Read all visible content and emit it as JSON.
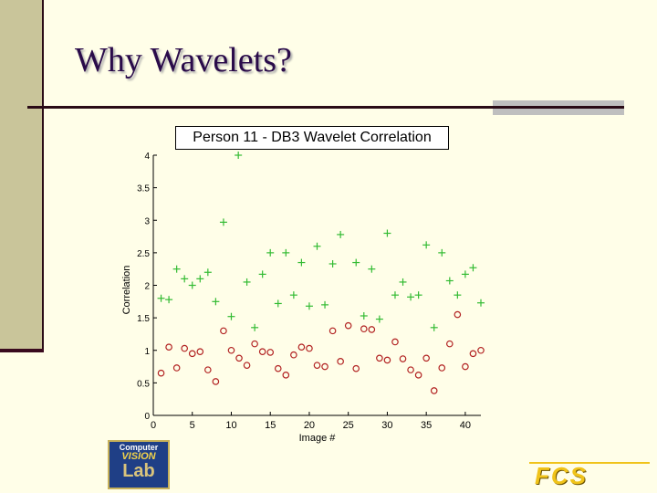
{
  "slide": {
    "title": "Why Wavelets?"
  },
  "logos": {
    "cvl": {
      "line1": "Computer",
      "line2": "VISION",
      "line3": "Lab"
    },
    "fcs": "FCS"
  },
  "chart_data": {
    "type": "scatter",
    "title": "Person 11 - DB3 Wavelet Correlation",
    "xlabel": "Image #",
    "ylabel": "Correlation",
    "xlim": [
      0,
      42
    ],
    "ylim": [
      0,
      4
    ],
    "xticks": [
      0,
      5,
      10,
      15,
      20,
      25,
      30,
      35,
      40
    ],
    "yticks": [
      0,
      0.5,
      1,
      1.5,
      2,
      2.5,
      3,
      3.5,
      4
    ],
    "yticklabels": [
      "0",
      "0.5",
      "1",
      "1.5",
      "2",
      "2.5",
      "3",
      "3.5",
      "4"
    ],
    "grid": false,
    "colors": {
      "plus": "#33bb33",
      "circle": "#b22222"
    },
    "series": [
      {
        "marker": "plus",
        "points": [
          [
            1,
            1.8
          ],
          [
            2,
            1.78
          ],
          [
            3,
            2.25
          ],
          [
            4,
            2.1
          ],
          [
            5,
            2.0
          ],
          [
            6,
            2.1
          ],
          [
            7,
            2.2
          ],
          [
            8,
            1.75
          ],
          [
            9,
            2.97
          ],
          [
            10,
            1.52
          ],
          [
            10.9,
            4.0
          ],
          [
            12,
            2.05
          ],
          [
            13,
            1.35
          ],
          [
            14,
            2.17
          ],
          [
            15,
            2.5
          ],
          [
            16,
            1.72
          ],
          [
            17,
            2.5
          ],
          [
            18,
            1.85
          ],
          [
            19,
            2.35
          ],
          [
            20,
            1.68
          ],
          [
            21,
            2.6
          ],
          [
            22,
            1.7
          ],
          [
            23,
            2.33
          ],
          [
            24,
            2.78
          ],
          [
            26,
            2.35
          ],
          [
            27,
            1.53
          ],
          [
            28,
            2.25
          ],
          [
            29,
            1.48
          ],
          [
            30,
            2.8
          ],
          [
            31,
            1.85
          ],
          [
            32,
            2.05
          ],
          [
            33,
            1.82
          ],
          [
            34,
            1.85
          ],
          [
            35,
            2.62
          ],
          [
            36,
            1.35
          ],
          [
            37,
            2.5
          ],
          [
            38,
            2.07
          ],
          [
            39,
            1.85
          ],
          [
            40,
            2.17
          ],
          [
            41,
            2.27
          ],
          [
            42,
            1.73
          ]
        ]
      },
      {
        "marker": "circle",
        "points": [
          [
            1,
            0.65
          ],
          [
            2,
            1.05
          ],
          [
            3,
            0.73
          ],
          [
            4,
            1.03
          ],
          [
            5,
            0.95
          ],
          [
            6,
            0.98
          ],
          [
            7,
            0.7
          ],
          [
            8,
            0.52
          ],
          [
            9,
            1.3
          ],
          [
            10,
            1.0
          ],
          [
            11,
            0.88
          ],
          [
            12,
            0.77
          ],
          [
            13,
            1.1
          ],
          [
            14,
            0.98
          ],
          [
            15,
            0.97
          ],
          [
            16,
            0.72
          ],
          [
            17,
            0.62
          ],
          [
            18,
            0.93
          ],
          [
            19,
            1.05
          ],
          [
            20,
            1.03
          ],
          [
            21,
            0.77
          ],
          [
            22,
            0.75
          ],
          [
            23,
            1.3
          ],
          [
            24,
            0.83
          ],
          [
            25,
            1.38
          ],
          [
            26,
            0.72
          ],
          [
            27,
            1.33
          ],
          [
            28,
            1.32
          ],
          [
            29,
            0.88
          ],
          [
            30,
            0.85
          ],
          [
            31,
            1.13
          ],
          [
            32,
            0.87
          ],
          [
            33,
            0.7
          ],
          [
            34,
            0.62
          ],
          [
            35,
            0.88
          ],
          [
            36,
            0.38
          ],
          [
            37,
            0.73
          ],
          [
            38,
            1.1
          ],
          [
            39,
            1.55
          ],
          [
            40,
            0.75
          ],
          [
            41,
            0.95
          ],
          [
            42,
            1.0
          ]
        ]
      }
    ]
  }
}
